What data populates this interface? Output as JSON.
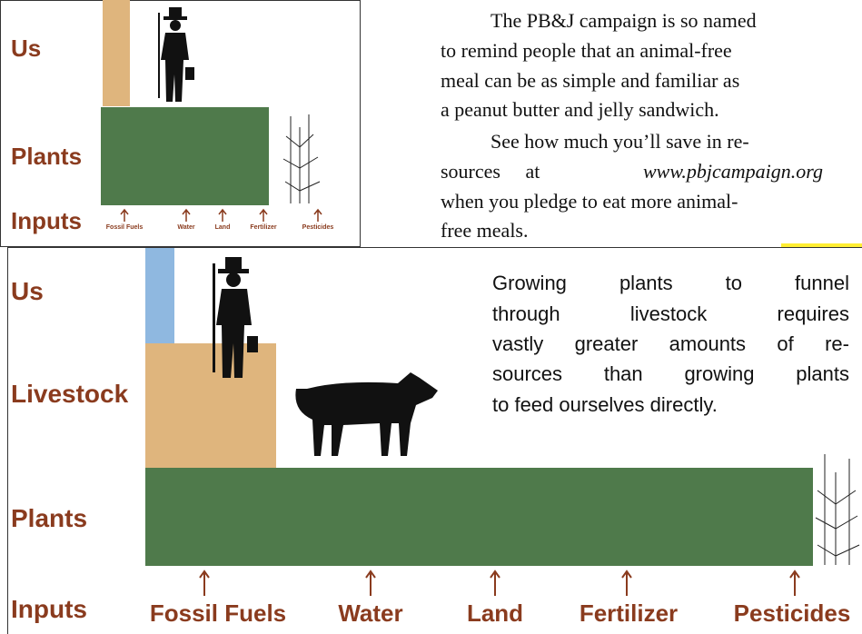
{
  "top_diagram": {
    "levels": [
      "Us",
      "Plants",
      "Inputs"
    ],
    "inputs": [
      "Fossil Fuels",
      "Water",
      "Land",
      "Fertilizer",
      "Pesticides"
    ]
  },
  "article": {
    "lines": [
      "The PB&J campaign is so named",
      "to remind people that an animal-free",
      "meal can be as simple and familiar as",
      "a peanut butter and jelly sandwich.",
      "See how much you’ll save in re-",
      "sources at",
      "www.pbjcampaign.org",
      "when you pledge to eat more animal-",
      "free meals."
    ]
  },
  "bottom_diagram": {
    "levels": [
      "Us",
      "Livestock",
      "Plants",
      "Inputs"
    ],
    "inputs": [
      "Fossil Fuels",
      "Water",
      "Land",
      "Fertilizer",
      "Pesticides"
    ],
    "caption_lines": [
      "Growing plants to funnel",
      "through livestock requires",
      "vastly greater amounts of re-",
      "sources than growing plants",
      "to feed ourselves directly."
    ]
  }
}
